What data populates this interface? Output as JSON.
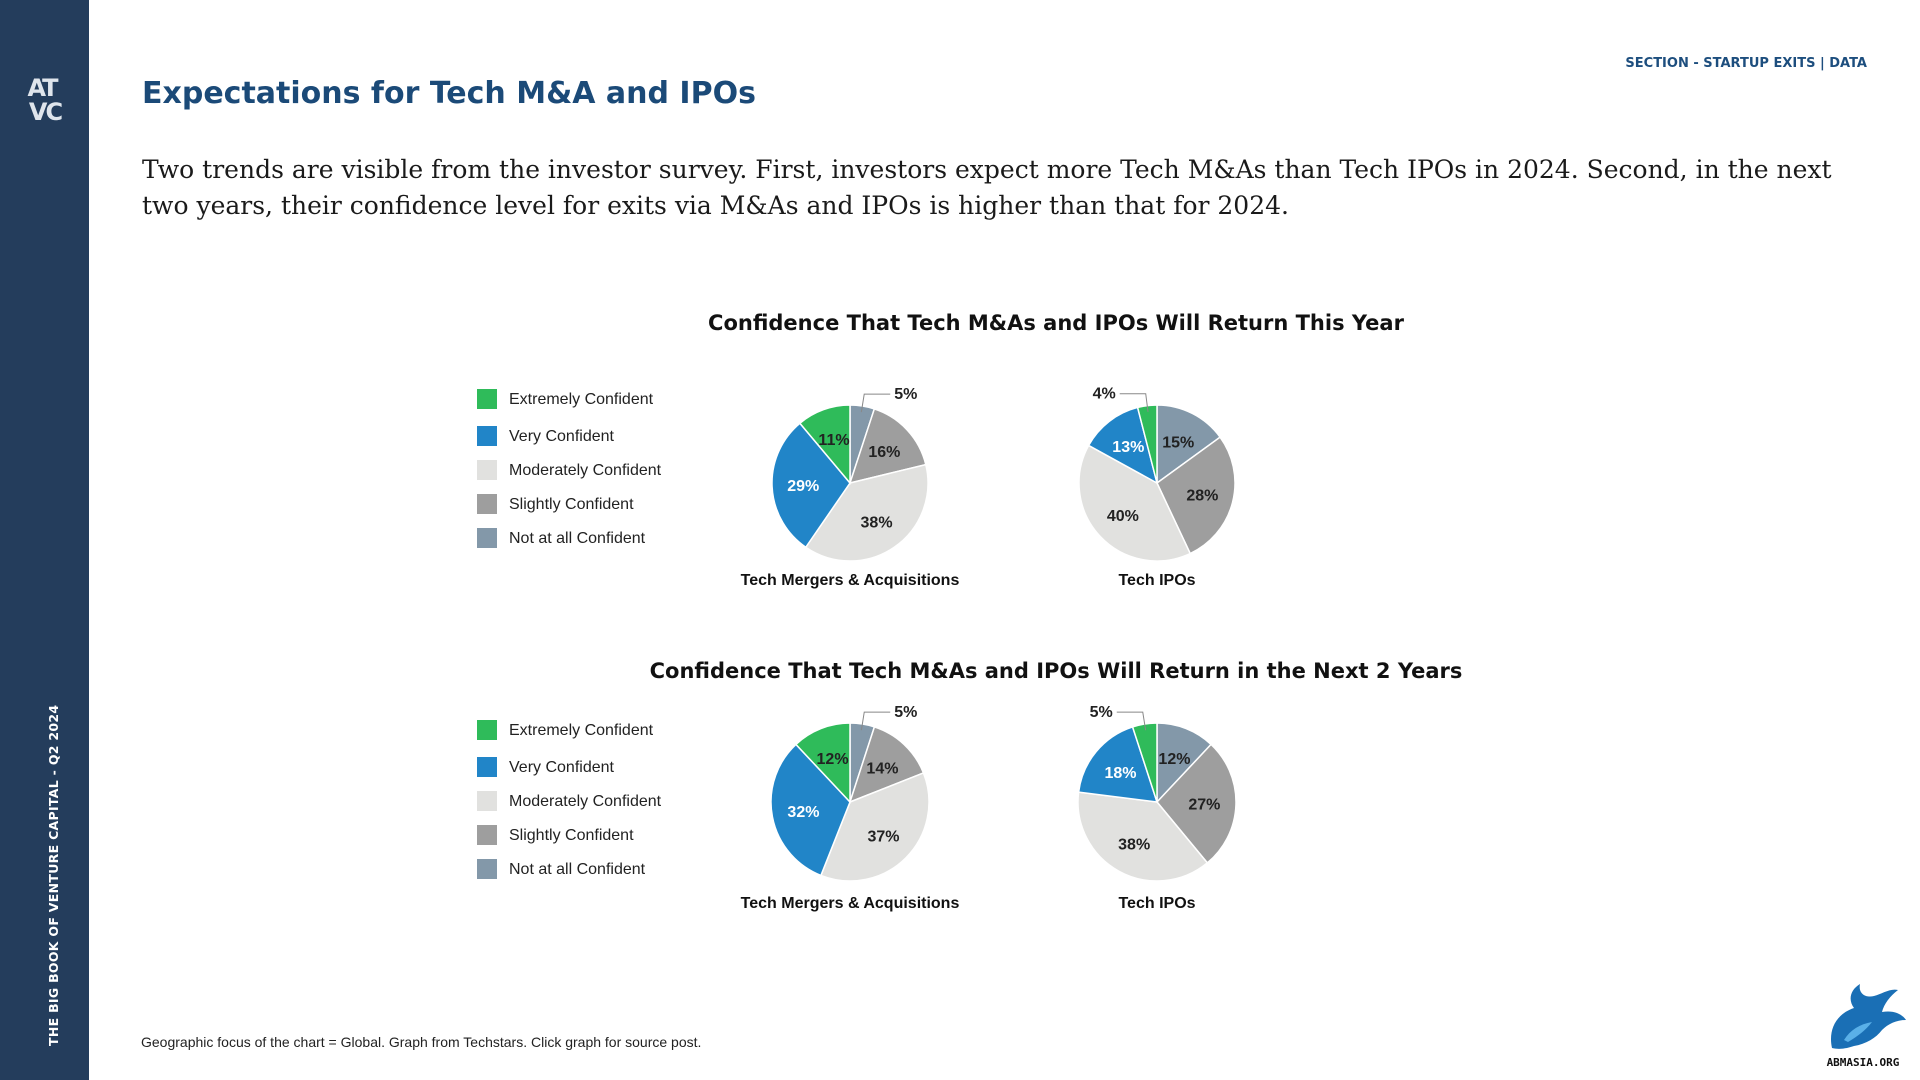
{
  "sidebar": {
    "logo_line1": "AT",
    "logo_line2": "VC",
    "vertical_title": "THE BIG BOOK OF VENTURE CAPITAL - Q2 2024",
    "background": "#243d5c"
  },
  "header": {
    "section_label": "SECTION - STARTUP EXITS | DATA",
    "title": "Expectations for Tech M&A and IPOs"
  },
  "intro_text": "Two trends are visible from the investor survey. First, investors expect more Tech M&As than Tech IPOs in 2024. Second, in the next two years, their confidence level for exits via M&As and IPOs is higher than that for 2024.",
  "footer_text": "Geographic focus of the chart = Global. Graph from Techstars. Click graph for source post.",
  "brand_logo_text": "ABMASIA.ORG",
  "colors": {
    "Extremely Confident": "#2fbb5a",
    "Very Confident": "#2185c8",
    "Moderately Confident": "#e1e1df",
    "Slightly Confident": "#9e9e9e",
    "Not at all Confident": "#8398a9"
  },
  "chart_data": [
    {
      "type": "pie",
      "title": "Confidence That Tech M&As and IPOs Will Return This Year",
      "legend": [
        "Extremely Confident",
        "Very Confident",
        "Moderately Confident",
        "Slightly Confident",
        "Not at all Confident"
      ],
      "legend_position": "left",
      "pies": [
        {
          "name": "Tech Mergers & Acquisitions",
          "slices": [
            {
              "label": "Not at all Confident",
              "value": 5,
              "text": "5%"
            },
            {
              "label": "Slightly Confident",
              "value": 16,
              "text": "16%"
            },
            {
              "label": "Moderately Confident",
              "value": 38,
              "text": "38%"
            },
            {
              "label": "Very Confident",
              "value": 29,
              "text": "29%"
            },
            {
              "label": "Extremely Confident",
              "value": 11,
              "text": "11%"
            }
          ]
        },
        {
          "name": "Tech IPOs",
          "slices": [
            {
              "label": "Not at all Confident",
              "value": 15,
              "text": "15%"
            },
            {
              "label": "Slightly Confident",
              "value": 28,
              "text": "28%"
            },
            {
              "label": "Moderately Confident",
              "value": 40,
              "text": "40%"
            },
            {
              "label": "Very Confident",
              "value": 13,
              "text": "13%"
            },
            {
              "label": "Extremely Confident",
              "value": 4,
              "text": "4%"
            }
          ]
        }
      ]
    },
    {
      "type": "pie",
      "title": "Confidence That Tech M&As and IPOs Will Return in the Next 2 Years",
      "legend": [
        "Extremely Confident",
        "Very Confident",
        "Moderately Confident",
        "Slightly Confident",
        "Not at all Confident"
      ],
      "legend_position": "left",
      "pies": [
        {
          "name": "Tech Mergers & Acquisitions",
          "slices": [
            {
              "label": "Not at all Confident",
              "value": 5,
              "text": "5%"
            },
            {
              "label": "Slightly Confident",
              "value": 14,
              "text": "14%"
            },
            {
              "label": "Moderately Confident",
              "value": 37,
              "text": "37%"
            },
            {
              "label": "Very Confident",
              "value": 32,
              "text": "32%"
            },
            {
              "label": "Extremely Confident",
              "value": 12,
              "text": "12%"
            }
          ]
        },
        {
          "name": "Tech IPOs",
          "slices": [
            {
              "label": "Not at all Confident",
              "value": 12,
              "text": "12%"
            },
            {
              "label": "Slightly Confident",
              "value": 27,
              "text": "27%"
            },
            {
              "label": "Moderately Confident",
              "value": 38,
              "text": "38%"
            },
            {
              "label": "Very Confident",
              "value": 18,
              "text": "18%"
            },
            {
              "label": "Extremely Confident",
              "value": 5,
              "text": "5%"
            }
          ]
        }
      ]
    }
  ]
}
